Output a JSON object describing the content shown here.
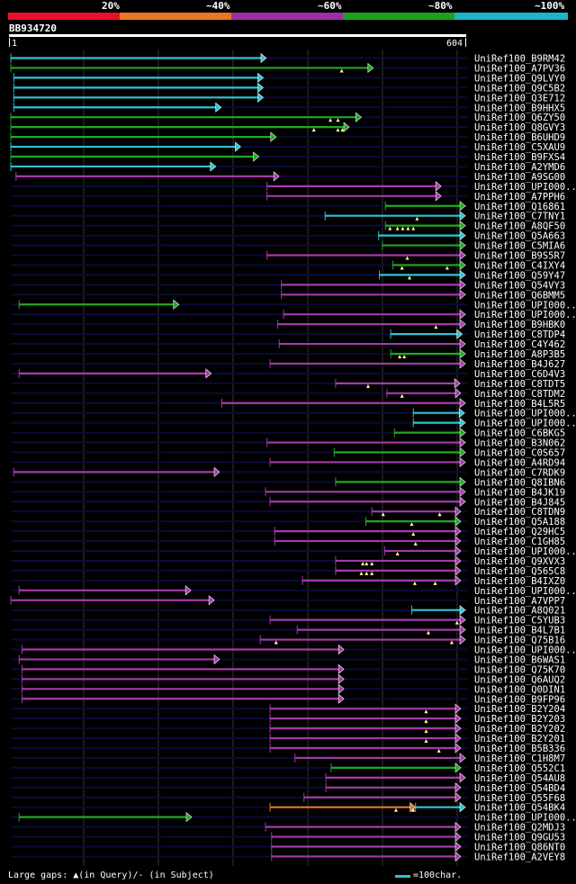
{
  "legend": {
    "segments": [
      {
        "label": "20%",
        "color": "#e8102a"
      },
      {
        "label": "~40%",
        "color": "#e87722"
      },
      {
        "label": "~60%",
        "color": "#9b2fa0"
      },
      {
        "label": "~80%",
        "color": "#1ea01e"
      },
      {
        "label": "~100%",
        "color": "#1eb4c8"
      }
    ]
  },
  "query": {
    "id": "BB934720",
    "start": "1",
    "end": "604"
  },
  "footer": {
    "gap_text": "Large gaps: ▲(in Query)/- (in Subject)",
    "scale_text": "=100char."
  },
  "hits": [
    {
      "id": "UniRef100_B9RM42",
      "s": 1,
      "e": 340,
      "c": "cyan",
      "tri": []
    },
    {
      "id": "UniRef100_A7PV36",
      "s": 1,
      "e": 482,
      "c": "green",
      "tri": [
        440
      ]
    },
    {
      "id": "UniRef100_Q9LVY0",
      "s": 5,
      "e": 336,
      "c": "cyan",
      "tri": []
    },
    {
      "id": "UniRef100_Q9C5B2",
      "s": 5,
      "e": 336,
      "c": "cyan",
      "tri": []
    },
    {
      "id": "UniRef100_Q3E712",
      "s": 5,
      "e": 336,
      "c": "cyan",
      "tri": []
    },
    {
      "id": "UniRef100_B9HHX5",
      "s": 5,
      "e": 280,
      "c": "cyan",
      "tri": []
    },
    {
      "id": "UniRef100_Q6ZY50",
      "s": 1,
      "e": 466,
      "c": "green",
      "tri": [
        425,
        435
      ]
    },
    {
      "id": "UniRef100_Q8GVY3",
      "s": 1,
      "e": 450,
      "c": "green",
      "tri": [
        403,
        435,
        441
      ]
    },
    {
      "id": "UniRef100_B6UHD9",
      "s": 1,
      "e": 353,
      "c": "green",
      "tri": []
    },
    {
      "id": "UniRef100_C5XAU9",
      "s": 1,
      "e": 306,
      "c": "cyan",
      "tri": []
    },
    {
      "id": "UniRef100_B9FXS4",
      "s": 1,
      "e": 330,
      "c": "green",
      "tri": []
    },
    {
      "id": "UniRef100_A2YMD6",
      "s": 1,
      "e": 273,
      "c": "cyan",
      "tri": []
    },
    {
      "id": "UniRef100_A9SG00",
      "s": 8,
      "e": 357,
      "c": "purple",
      "tri": []
    },
    {
      "id": "UniRef100_UPI000..",
      "s": 341,
      "e": 572,
      "c": "purple",
      "tri": []
    },
    {
      "id": "UniRef100_A7PPH6",
      "s": 341,
      "e": 572,
      "c": "purple",
      "tri": []
    },
    {
      "id": "UniRef100_Q16861",
      "s": 498,
      "e": 604,
      "c": "green",
      "tri": []
    },
    {
      "id": "UniRef100_C7TNY1",
      "s": 418,
      "e": 604,
      "c": "cyan",
      "tri": [
        540
      ]
    },
    {
      "id": "UniRef100_A8QF50",
      "s": 498,
      "e": 604,
      "c": "green",
      "tri": [
        504,
        514,
        521,
        528,
        535
      ]
    },
    {
      "id": "UniRef100_Q5A663",
      "s": 489,
      "e": 604,
      "c": "cyan",
      "tri": []
    },
    {
      "id": "UniRef100_C5MIA6",
      "s": 494,
      "e": 604,
      "c": "green",
      "tri": []
    },
    {
      "id": "UniRef100_B9S5R7",
      "s": 341,
      "e": 604,
      "c": "purple",
      "tri": [
        527
      ]
    },
    {
      "id": "UniRef100_C4IXY4",
      "s": 508,
      "e": 604,
      "c": "green",
      "tri": [
        520,
        580
      ]
    },
    {
      "id": "UniRef100_Q59Y47",
      "s": 490,
      "e": 604,
      "c": "cyan",
      "tri": [
        530
      ]
    },
    {
      "id": "UniRef100_Q54VY3",
      "s": 360,
      "e": 604,
      "c": "purple",
      "tri": []
    },
    {
      "id": "UniRef100_Q6BMM5",
      "s": 360,
      "e": 604,
      "c": "purple",
      "tri": []
    },
    {
      "id": "UniRef100_UPI000..",
      "s": 12,
      "e": 224,
      "c": "green",
      "tri": []
    },
    {
      "id": "UniRef100_UPI000..",
      "s": 363,
      "e": 604,
      "c": "purple",
      "tri": []
    },
    {
      "id": "UniRef100_B9HBK0",
      "s": 355,
      "e": 604,
      "c": "purple",
      "tri": [
        565
      ]
    },
    {
      "id": "UniRef100_C8TDP4",
      "s": 505,
      "e": 600,
      "c": "cyan",
      "tri": []
    },
    {
      "id": "UniRef100_C4Y462",
      "s": 357,
      "e": 604,
      "c": "purple",
      "tri": []
    },
    {
      "id": "UniRef100_A8P3B5",
      "s": 505,
      "e": 604,
      "c": "green",
      "tri": [
        517,
        523
      ]
    },
    {
      "id": "UniRef100_B4J627",
      "s": 345,
      "e": 604,
      "c": "purple",
      "tri": []
    },
    {
      "id": "UniRef100_C6D4V3",
      "s": 12,
      "e": 267,
      "c": "purple",
      "tri": []
    },
    {
      "id": "UniRef100_C8TDT5",
      "s": 432,
      "e": 597,
      "c": "purple",
      "tri": [
        475
      ]
    },
    {
      "id": "UniRef100_C8TDM2",
      "s": 500,
      "e": 598,
      "c": "purple",
      "tri": [
        520
      ]
    },
    {
      "id": "UniRef100_B4L5R5",
      "s": 281,
      "e": 604,
      "c": "purple",
      "tri": []
    },
    {
      "id": "UniRef100_UPI000..",
      "s": 535,
      "e": 603,
      "c": "cyan",
      "tri": []
    },
    {
      "id": "UniRef100_UPI000..",
      "s": 535,
      "e": 604,
      "c": "cyan",
      "tri": []
    },
    {
      "id": "UniRef100_C6BKG5",
      "s": 510,
      "e": 604,
      "c": "green",
      "tri": []
    },
    {
      "id": "UniRef100_B3N062",
      "s": 341,
      "e": 604,
      "c": "purple",
      "tri": []
    },
    {
      "id": "UniRef100_C0S657",
      "s": 430,
      "e": 604,
      "c": "green",
      "tri": []
    },
    {
      "id": "UniRef100_A4RD94",
      "s": 345,
      "e": 604,
      "c": "purple",
      "tri": []
    },
    {
      "id": "UniRef100_C7RDK9",
      "s": 5,
      "e": 278,
      "c": "purple",
      "tri": []
    },
    {
      "id": "UniRef100_Q8IBN6",
      "s": 432,
      "e": 604,
      "c": "green",
      "tri": []
    },
    {
      "id": "UniRef100_B4JK19",
      "s": 339,
      "e": 604,
      "c": "purple",
      "tri": []
    },
    {
      "id": "UniRef100_B4J845",
      "s": 345,
      "e": 604,
      "c": "purple",
      "tri": []
    },
    {
      "id": "UniRef100_C8TDN9",
      "s": 480,
      "e": 598,
      "c": "purple",
      "tri": [
        495,
        570
      ]
    },
    {
      "id": "UniRef100_Q5A188",
      "s": 472,
      "e": 598,
      "c": "green",
      "tri": [
        533
      ]
    },
    {
      "id": "UniRef100_Q29HC5",
      "s": 351,
      "e": 598,
      "c": "purple",
      "tri": [
        535
      ]
    },
    {
      "id": "UniRef100_C1GH85",
      "s": 351,
      "e": 598,
      "c": "purple",
      "tri": [
        538
      ]
    },
    {
      "id": "UniRef100_UPI000..",
      "s": 497,
      "e": 598,
      "c": "purple",
      "tri": [
        514
      ]
    },
    {
      "id": "UniRef100_Q9XVX3",
      "s": 432,
      "e": 598,
      "c": "purple",
      "tri": [
        468,
        473,
        480
      ]
    },
    {
      "id": "UniRef100_Q565C8",
      "s": 432,
      "e": 598,
      "c": "purple",
      "tri": [
        466,
        473,
        480
      ]
    },
    {
      "id": "UniRef100_B4IXZ0",
      "s": 388,
      "e": 598,
      "c": "purple",
      "tri": [
        537,
        564
      ]
    },
    {
      "id": "UniRef100_UPI000..",
      "s": 12,
      "e": 240,
      "c": "purple",
      "tri": []
    },
    {
      "id": "UniRef100_A7VPP7",
      "s": 1,
      "e": 271,
      "c": "purple",
      "tri": []
    },
    {
      "id": "UniRef100_A8Q021",
      "s": 533,
      "e": 604,
      "c": "cyan",
      "tri": []
    },
    {
      "id": "UniRef100_C5YUB3",
      "s": 345,
      "e": 604,
      "c": "purple",
      "tri": [
        593
      ]
    },
    {
      "id": "UniRef100_B4L7B1",
      "s": 381,
      "e": 604,
      "c": "purple",
      "tri": [
        555
      ]
    },
    {
      "id": "UniRef100_Q75B16",
      "s": 332,
      "e": 604,
      "c": "purple",
      "tri": [
        353,
        586
      ]
    },
    {
      "id": "UniRef100_UPI000..",
      "s": 16,
      "e": 443,
      "c": "purple",
      "tri": []
    },
    {
      "id": "UniRef100_B6WAS1",
      "s": 12,
      "e": 278,
      "c": "purple",
      "tri": []
    },
    {
      "id": "UniRef100_Q75K70",
      "s": 16,
      "e": 443,
      "c": "purple",
      "tri": []
    },
    {
      "id": "UniRef100_Q6AUQ2",
      "s": 16,
      "e": 443,
      "c": "purple",
      "tri": []
    },
    {
      "id": "UniRef100_Q0DIN1",
      "s": 16,
      "e": 443,
      "c": "purple",
      "tri": []
    },
    {
      "id": "UniRef100_B9FP96",
      "s": 16,
      "e": 443,
      "c": "purple",
      "tri": []
    },
    {
      "id": "UniRef100_B2Y204",
      "s": 345,
      "e": 598,
      "c": "purple",
      "tri": [
        552
      ]
    },
    {
      "id": "UniRef100_B2Y203",
      "s": 345,
      "e": 598,
      "c": "purple",
      "tri": [
        552
      ]
    },
    {
      "id": "UniRef100_B2Y202",
      "s": 345,
      "e": 598,
      "c": "purple",
      "tri": [
        552
      ]
    },
    {
      "id": "UniRef100_B2Y201",
      "s": 345,
      "e": 598,
      "c": "purple",
      "tri": [
        552
      ]
    },
    {
      "id": "UniRef100_B5B336",
      "s": 345,
      "e": 598,
      "c": "purple",
      "tri": [
        569
      ]
    },
    {
      "id": "UniRef100_C1H8M7",
      "s": 378,
      "e": 604,
      "c": "purple",
      "tri": []
    },
    {
      "id": "UniRef100_Q552C1",
      "s": 426,
      "e": 598,
      "c": "green",
      "tri": []
    },
    {
      "id": "UniRef100_Q54AU8",
      "s": 419,
      "e": 604,
      "c": "purple",
      "tri": []
    },
    {
      "id": "UniRef100_Q54BD4",
      "s": 419,
      "e": 598,
      "c": "purple",
      "tri": []
    },
    {
      "id": "UniRef100_Q55F68",
      "s": 390,
      "e": 598,
      "c": "purple",
      "tri": []
    },
    {
      "id": "UniRef100_Q54BK4",
      "s": 345,
      "e": 538,
      "c": "orange",
      "tri": [
        512,
        535
      ],
      "ext": {
        "s": 538,
        "e": 604,
        "c": "cyan"
      }
    },
    {
      "id": "UniRef100_UPI000..",
      "s": 12,
      "e": 241,
      "c": "green",
      "tri": []
    },
    {
      "id": "UniRef100_Q2MDJ3",
      "s": 339,
      "e": 598,
      "c": "purple",
      "tri": []
    },
    {
      "id": "UniRef100_Q9GU53",
      "s": 347,
      "e": 598,
      "c": "purple",
      "tri": []
    },
    {
      "id": "UniRef100_Q86NT0",
      "s": 347,
      "e": 598,
      "c": "purple",
      "tri": []
    },
    {
      "id": "UniRef100_A2VEY8",
      "s": 347,
      "e": 598,
      "c": "purple",
      "tri": []
    }
  ],
  "colors": {
    "cyan": "#2ec4d0",
    "green": "#22a822",
    "purple": "#a53aa8",
    "orange": "#e07a20",
    "row_bg": "#0a0a3a",
    "grid": "#333333",
    "tri": "#ffff99"
  }
}
